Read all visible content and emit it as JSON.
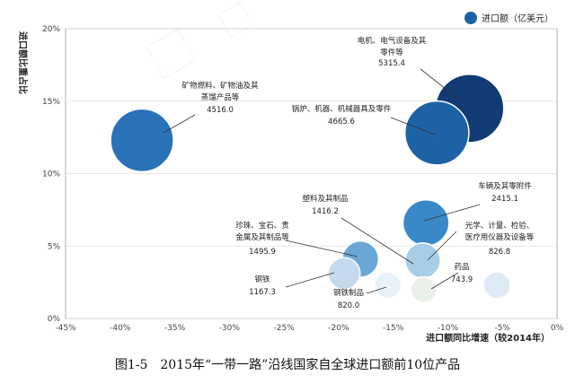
{
  "chart_data": {
    "type": "bubble",
    "title": "",
    "xlabel": "进口额同比增速（较2014年）",
    "ylabel": "进口额比重占比",
    "xlim": [
      -45,
      0
    ],
    "ylim": [
      0,
      20
    ],
    "x_ticks": [
      "-45%",
      "-40%",
      "-35%",
      "-30%",
      "-25%",
      "-20%",
      "-15%",
      "-10%",
      "-5%",
      "0%"
    ],
    "y_ticks": [
      "0%",
      "5%",
      "10%",
      "15%",
      "20%"
    ],
    "legend": {
      "label": "进口额（亿美元）",
      "position": "top-right"
    },
    "series": [
      {
        "name": "进口额（亿美元）",
        "points": [
          {
            "name": "电机、电气设备及其零件等",
            "value_label": "5315.4",
            "value": 5315.4,
            "x": -8,
            "y": 14.5,
            "color": "#123a75"
          },
          {
            "name": "锅炉、机器、机械器具及零件",
            "value_label": "4665.6",
            "value": 4665.6,
            "x": -11,
            "y": 12.8,
            "color": "#1e62a6"
          },
          {
            "name": "矿物燃料、矿物油及其蒸馏产品等",
            "value_label": "4516.0",
            "value": 4516.0,
            "x": -38,
            "y": 12.3,
            "color": "#2a72b8"
          },
          {
            "name": "车辆及其零附件",
            "value_label": "2415.1",
            "value": 2415.1,
            "x": -12,
            "y": 6.6,
            "color": "#3a88c8"
          },
          {
            "name": "塑料及其制品",
            "value_label": "1416.2",
            "value": 1416.2,
            "x": -12.3,
            "y": 4.0,
            "color": "#a8cde6"
          },
          {
            "name": "珍珠、宝石、贵金属及其制品等",
            "value_label": "1495.9",
            "value": 1495.9,
            "x": -18,
            "y": 4.1,
            "color": "#6aa7d6"
          },
          {
            "name": "钢铁",
            "value_label": "1167.3",
            "value": 1167.3,
            "x": -19.5,
            "y": 3.1,
            "color": "#c3daee"
          },
          {
            "name": "钢铁制品",
            "value_label": "820.0",
            "value": 820.0,
            "x": -15.5,
            "y": 2.3,
            "color": "#e9f1f9"
          },
          {
            "name": "药品",
            "value_label": "743.9",
            "value": 743.9,
            "x": -12.2,
            "y": 2.0,
            "color": "#e9efe9"
          },
          {
            "name": "光学、计量、检验、医疗用仪器及设备等",
            "value_label": "826.8",
            "value": 826.8,
            "x": -5.5,
            "y": 2.3,
            "color": "#dde9f5"
          }
        ]
      }
    ]
  },
  "caption": "图1-5　2015年“一带一路”沿线国家自全球进口额前10位产品"
}
